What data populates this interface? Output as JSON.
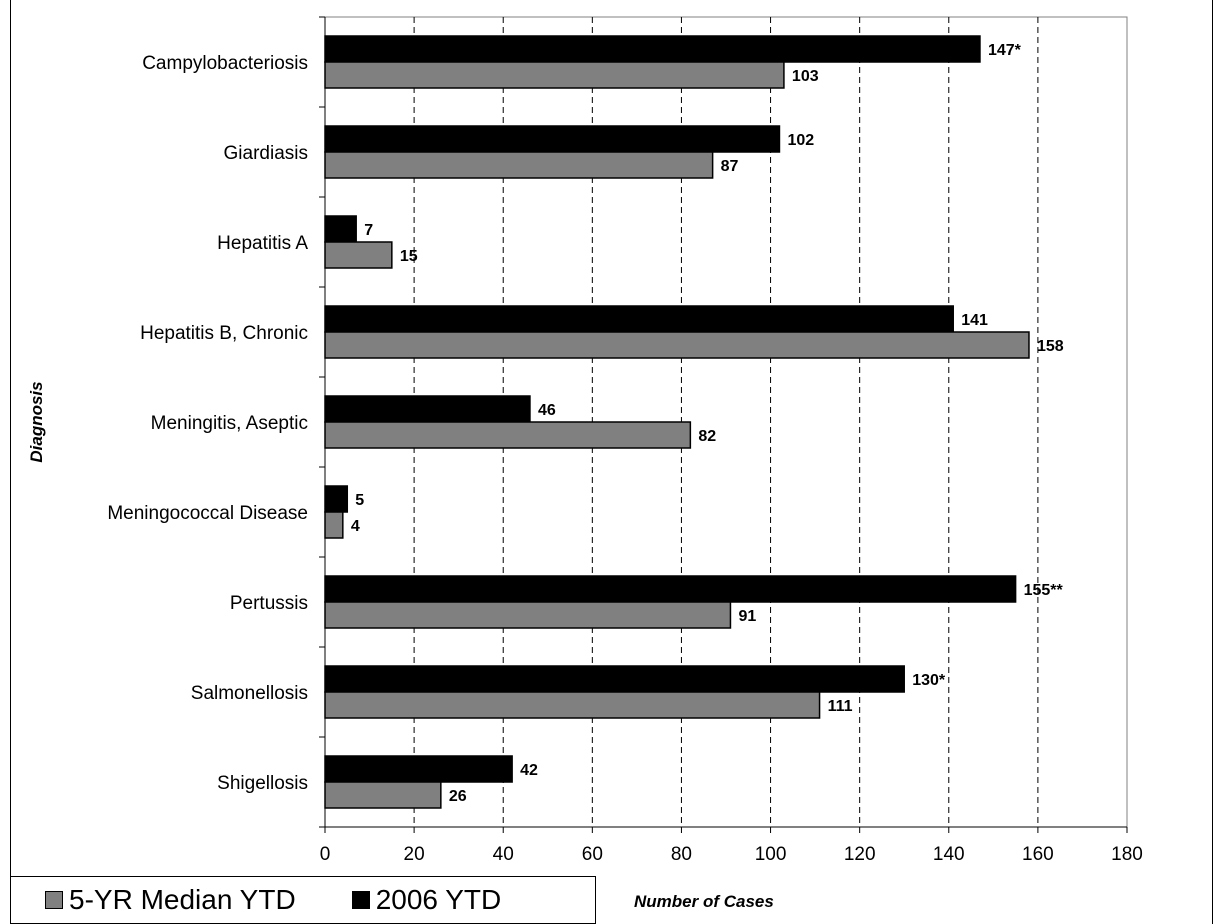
{
  "chart_data": {
    "type": "bar",
    "orientation": "horizontal",
    "categories": [
      "Campylobacteriosis",
      "Giardiasis",
      "Hepatitis A",
      "Hepatitis B, Chronic",
      "Meningitis, Aseptic",
      "Meningococcal Disease",
      "Pertussis",
      "Salmonellosis",
      "Shigellosis"
    ],
    "series": [
      {
        "name": "2006 YTD",
        "color": "#000000",
        "values": [
          147,
          102,
          7,
          141,
          46,
          5,
          155,
          130,
          42
        ],
        "labels": [
          "147*",
          "102",
          "7",
          "141",
          "46",
          "5",
          "155**",
          "130*",
          "42"
        ]
      },
      {
        "name": "5-YR Median YTD",
        "color": "#808080",
        "values": [
          103,
          87,
          15,
          158,
          82,
          4,
          91,
          111,
          26
        ],
        "labels": [
          "103",
          "87",
          "15",
          "158",
          "82",
          "4",
          "91",
          "111",
          "26"
        ]
      }
    ],
    "xlabel": "Number of Cases",
    "ylabel": "Diagnosis",
    "xlim": [
      0,
      180
    ],
    "xticks": [
      0,
      20,
      40,
      60,
      80,
      100,
      120,
      140,
      160,
      180
    ],
    "grid": "vertical dashed",
    "legend": {
      "position": "bottom-left",
      "items": [
        "5-YR Median YTD",
        "2006 YTD"
      ]
    }
  }
}
